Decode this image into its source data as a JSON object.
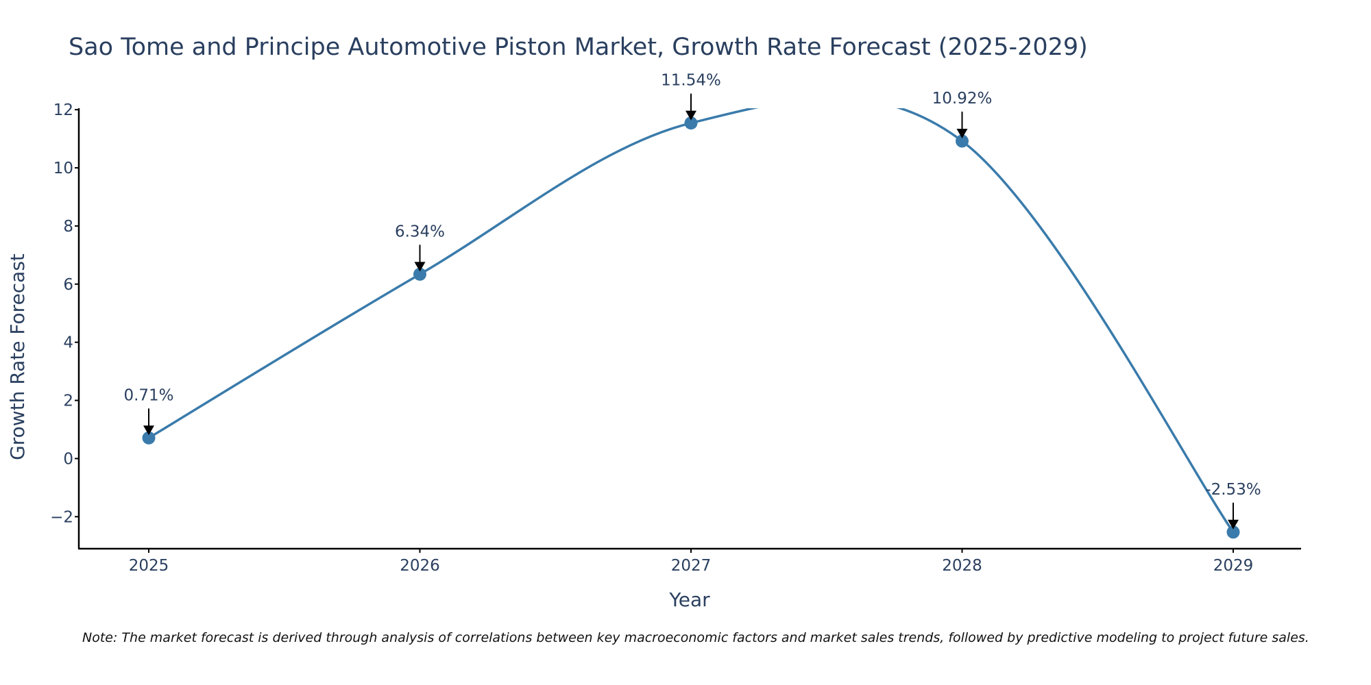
{
  "chart_data": {
    "type": "line",
    "title": "Sao Tome and Principe Automotive Piston Market, Growth Rate Forecast (2025-2029)",
    "xlabel": "Year",
    "ylabel": "Growth Rate Forecast",
    "categories": [
      "2025",
      "2026",
      "2027",
      "2028",
      "2029"
    ],
    "values": [
      0.71,
      6.34,
      11.54,
      10.92,
      -2.53
    ],
    "data_labels": [
      "0.71%",
      "6.34%",
      "11.54%",
      "10.92%",
      "-2.53%"
    ],
    "ylim": [
      -3.1,
      12.05
    ],
    "yticks": [
      -2,
      0,
      2,
      4,
      6,
      8,
      10,
      12
    ],
    "ytick_labels": [
      "−2",
      "0",
      "2",
      "4",
      "6",
      "8",
      "10",
      "12"
    ],
    "grid": false,
    "line_shape": "spline",
    "colors": {
      "line": "#3a7bab",
      "marker": "#3a7bab",
      "arrow": "#000000",
      "axis": "#000000",
      "text": "#2a3f5f"
    }
  },
  "note": "Note: The market forecast is derived through analysis of correlations between key macroeconomic factors and market sales trends, followed by predictive modeling to project future sales."
}
